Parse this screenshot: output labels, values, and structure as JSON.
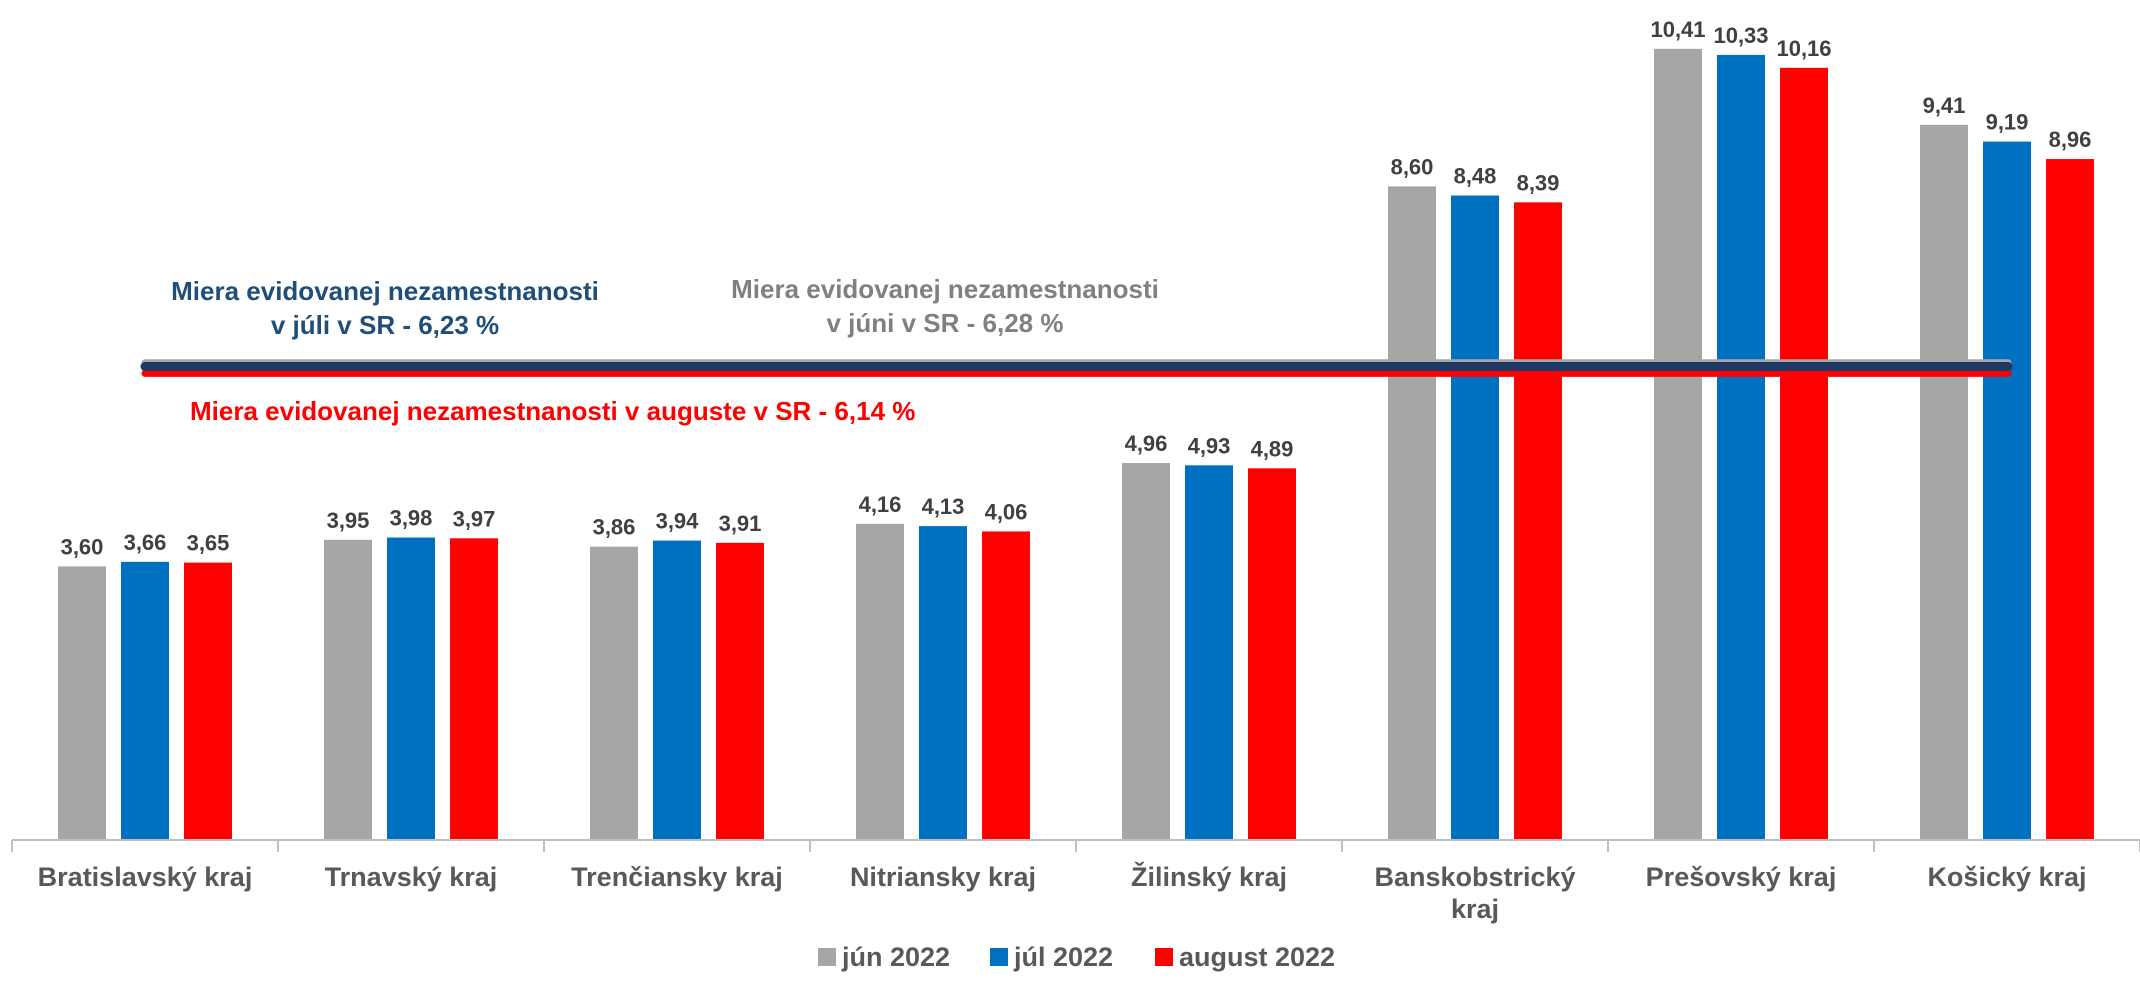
{
  "chart_data": {
    "type": "bar",
    "categories": [
      [
        "Bratislavský kraj"
      ],
      [
        "Trnavský kraj"
      ],
      [
        "Trenčiansky kraj"
      ],
      [
        "Nitriansky kraj"
      ],
      [
        "Žilinský kraj"
      ],
      [
        "Banskobstrický",
        "kraj"
      ],
      [
        "Prešovský kraj"
      ],
      [
        "Košický kraj"
      ]
    ],
    "series": [
      {
        "name": "jún 2022",
        "color": "#a6a6a6",
        "values": [
          3.6,
          3.95,
          3.86,
          4.16,
          4.96,
          8.6,
          10.41,
          9.41
        ],
        "labels": [
          "3,60",
          "3,95",
          "3,86",
          "4,16",
          "4,96",
          "8,60",
          "10,41",
          "9,41"
        ]
      },
      {
        "name": "júl 2022",
        "color": "#0070c0",
        "values": [
          3.66,
          3.98,
          3.94,
          4.13,
          4.93,
          8.48,
          10.33,
          9.19
        ],
        "labels": [
          "3,66",
          "3,98",
          "3,94",
          "4,13",
          "4,93",
          "8,48",
          "10,33",
          "9,19"
        ]
      },
      {
        "name": "august 2022",
        "color": "#ff0000",
        "values": [
          3.65,
          3.97,
          3.91,
          4.06,
          4.89,
          8.39,
          10.16,
          8.96
        ],
        "labels": [
          "3,65",
          "3,97",
          "3,91",
          "4,06",
          "4,89",
          "8,39",
          "10,16",
          "8,96"
        ]
      }
    ],
    "ylim": [
      0,
      10.8
    ],
    "reference_lines": [
      {
        "value": 6.28,
        "color": "#a6a6a6",
        "text": [
          "Miera evidovanej nezamestnanosti",
          "v júni v SR - 6,28 %"
        ]
      },
      {
        "value": 6.14,
        "color": "#ff0000",
        "text": [
          "Miera evidovanej nezamestnanosti v auguste v SR - 6,14 %"
        ]
      },
      {
        "value": 6.23,
        "color": "#1f3864",
        "text": [
          "Miera evidovanej nezamestnanosti",
          "v júli v SR - 6,23 %"
        ]
      }
    ],
    "annotation_colors": {
      "june": "#808080",
      "july": "#1f4e79",
      "august": "#ff0000"
    },
    "legend_position": "bottom",
    "grid": false
  }
}
